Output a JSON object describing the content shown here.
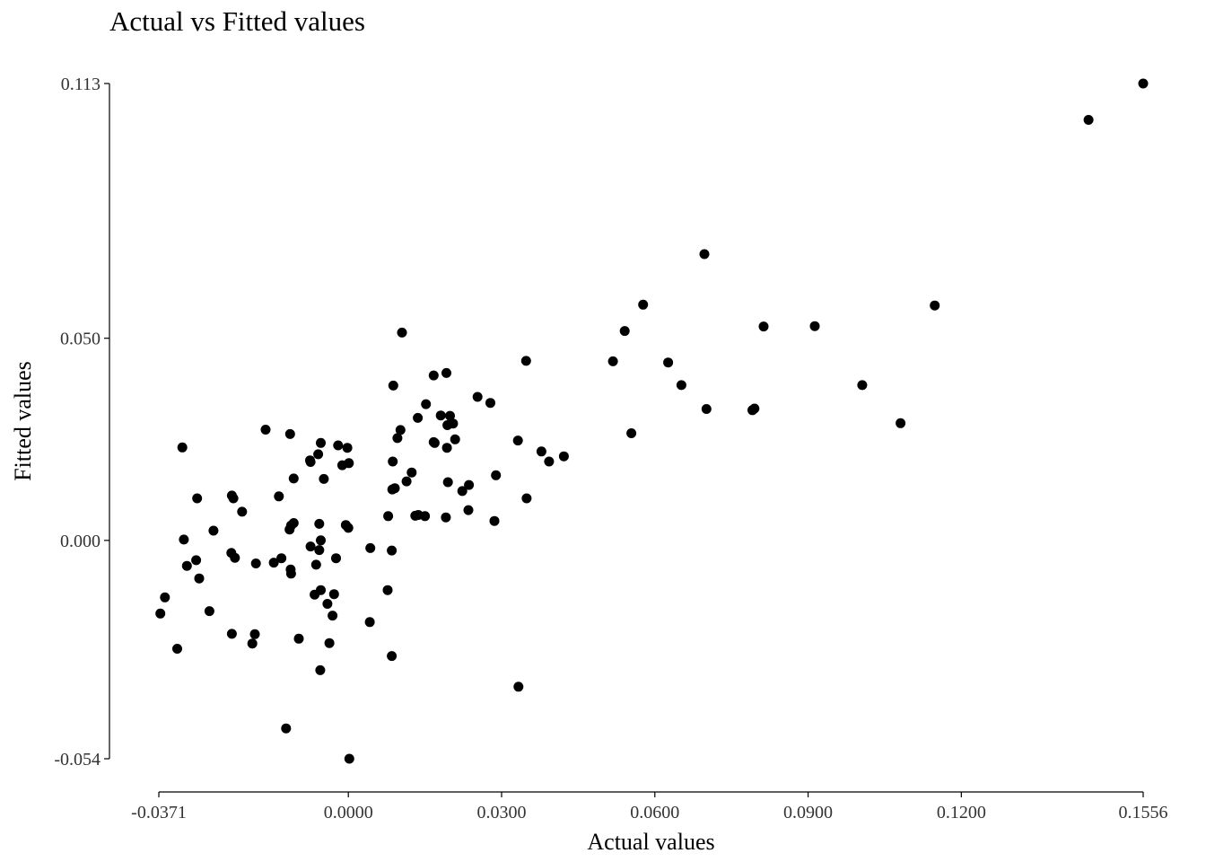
{
  "chart_data": {
    "type": "scatter",
    "title": "Actual vs Fitted values",
    "xlabel": "Actual values",
    "ylabel": "Fitted values",
    "xlim": [
      -0.0371,
      0.1556
    ],
    "ylim": [
      -0.054,
      0.113
    ],
    "x_ticks": [
      -0.0371,
      0.0,
      0.03,
      0.06,
      0.09,
      0.12,
      0.1556
    ],
    "x_tick_labels": [
      "-0.0371",
      "0.0000",
      "0.0300",
      "0.0600",
      "0.0900",
      "0.1200",
      "0.1556"
    ],
    "y_ticks": [
      -0.054,
      0.0,
      0.05,
      0.113
    ],
    "y_tick_labels": [
      "-0.054",
      "0.000",
      "0.050",
      "0.113"
    ],
    "grid": false,
    "point_color": "#000000",
    "points": [
      [
        0.1556,
        0.113
      ],
      [
        0.1449,
        0.104
      ],
      [
        0.0697,
        0.0708
      ],
      [
        0.0577,
        0.0583
      ],
      [
        0.0541,
        0.0518
      ],
      [
        0.1148,
        0.0581
      ],
      [
        0.0813,
        0.0529
      ],
      [
        0.0913,
        0.053
      ],
      [
        0.0518,
        0.0443
      ],
      [
        0.0626,
        0.044
      ],
      [
        0.0652,
        0.0384
      ],
      [
        0.1006,
        0.0384
      ],
      [
        0.0701,
        0.0325
      ],
      [
        0.0791,
        0.0322
      ],
      [
        0.0795,
        0.0326
      ],
      [
        0.1081,
        0.029
      ],
      [
        0.0554,
        0.0265
      ],
      [
        0.0348,
        0.0444
      ],
      [
        0.0332,
        0.0247
      ],
      [
        0.0378,
        0.022
      ],
      [
        0.0393,
        0.0195
      ],
      [
        0.0422,
        0.0208
      ],
      [
        0.0105,
        0.0514
      ],
      [
        0.0167,
        0.0408
      ],
      [
        0.0192,
        0.0414
      ],
      [
        0.0088,
        0.0383
      ],
      [
        0.0253,
        0.0355
      ],
      [
        0.0278,
        0.034
      ],
      [
        0.0152,
        0.0337
      ],
      [
        0.0136,
        0.0303
      ],
      [
        0.0181,
        0.0309
      ],
      [
        0.0199,
        0.0308
      ],
      [
        0.0205,
        0.0289
      ],
      [
        0.0194,
        0.0285
      ],
      [
        0.0102,
        0.0273
      ],
      [
        0.0096,
        0.0253
      ],
      [
        0.0167,
        0.0243
      ],
      [
        0.0169,
        0.0241
      ],
      [
        0.0209,
        0.025
      ],
      [
        0.0193,
        0.0229
      ],
      [
        0.0087,
        0.0195
      ],
      [
        0.0124,
        0.0168
      ],
      [
        0.0114,
        0.0146
      ],
      [
        0.0195,
        0.0144
      ],
      [
        0.0236,
        0.0137
      ],
      [
        0.0223,
        0.0122
      ],
      [
        0.0289,
        0.0161
      ],
      [
        0.0091,
        0.0129
      ],
      [
        0.0086,
        0.0126
      ],
      [
        0.0349,
        0.0104
      ],
      [
        0.0131,
        0.0061
      ],
      [
        0.0137,
        0.0063
      ],
      [
        0.015,
        0.006
      ],
      [
        0.0191,
        0.0057
      ],
      [
        0.0235,
        0.0075
      ],
      [
        0.0286,
        0.0048
      ],
      [
        0.0078,
        0.006
      ],
      [
        0.0043,
        -0.0019
      ],
      [
        0.0085,
        -0.0025
      ],
      [
        0.0077,
        -0.0123
      ],
      [
        0.0042,
        -0.0202
      ],
      [
        0.0085,
        -0.0286
      ],
      [
        0.0333,
        -0.0362
      ],
      [
        0.0002,
        -0.054
      ],
      [
        -0.0122,
        -0.0465
      ],
      [
        -0.0055,
        -0.0321
      ],
      [
        -0.0037,
        -0.0254
      ],
      [
        -0.0097,
        -0.0243
      ],
      [
        -0.0183,
        -0.0232
      ],
      [
        -0.0188,
        -0.0255
      ],
      [
        -0.0228,
        -0.0231
      ],
      [
        -0.0335,
        -0.0268
      ],
      [
        -0.0368,
        -0.0181
      ],
      [
        -0.0359,
        -0.0141
      ],
      [
        -0.0272,
        -0.0175
      ],
      [
        -0.0031,
        -0.0186
      ],
      [
        -0.0028,
        -0.0133
      ],
      [
        -0.0041,
        -0.0157
      ],
      [
        -0.0066,
        -0.0134
      ],
      [
        -0.0054,
        -0.0123
      ],
      [
        -0.0112,
        -0.0082
      ],
      [
        -0.0113,
        -0.0072
      ],
      [
        -0.0131,
        -0.0044
      ],
      [
        -0.0146,
        -0.0055
      ],
      [
        -0.0181,
        -0.0057
      ],
      [
        -0.0222,
        -0.0043
      ],
      [
        -0.0229,
        -0.0031
      ],
      [
        -0.0316,
        -0.0063
      ],
      [
        -0.0292,
        -0.0094
      ],
      [
        -0.0298,
        -0.0049
      ],
      [
        -0.0264,
        0.0024
      ],
      [
        -0.0322,
        0.0002
      ],
      [
        -0.0074,
        -0.0015
      ],
      [
        -0.0057,
        -0.0024
      ],
      [
        -0.0063,
        -0.006
      ],
      [
        -0.0024,
        -0.0044
      ],
      [
        -0.0054,
        0.0
      ],
      [
        -0.0057,
        0.0041
      ],
      [
        -0.0107,
        0.0043
      ],
      [
        -0.0115,
        0.0027
      ],
      [
        -0.0112,
        0.0037
      ],
      [
        0.0,
        0.0031
      ],
      [
        -0.0005,
        0.0038
      ],
      [
        -0.0208,
        0.0071
      ],
      [
        -0.0228,
        0.0111
      ],
      [
        -0.0225,
        0.0104
      ],
      [
        -0.0136,
        0.0109
      ],
      [
        -0.0296,
        0.0104
      ],
      [
        -0.0107,
        0.0153
      ],
      [
        -0.0074,
        0.0194
      ],
      [
        -0.0048,
        0.0152
      ],
      [
        -0.0075,
        0.0198
      ],
      [
        -0.0059,
        0.0213
      ],
      [
        -0.0012,
        0.0186
      ],
      [
        -0.0054,
        0.0241
      ],
      [
        -0.002,
        0.0235
      ],
      [
        -0.0002,
        0.0229
      ],
      [
        -0.0114,
        0.0263
      ],
      [
        -0.0162,
        0.0274
      ],
      [
        -0.0325,
        0.023
      ],
      [
        0.0001,
        0.0191
      ]
    ]
  }
}
